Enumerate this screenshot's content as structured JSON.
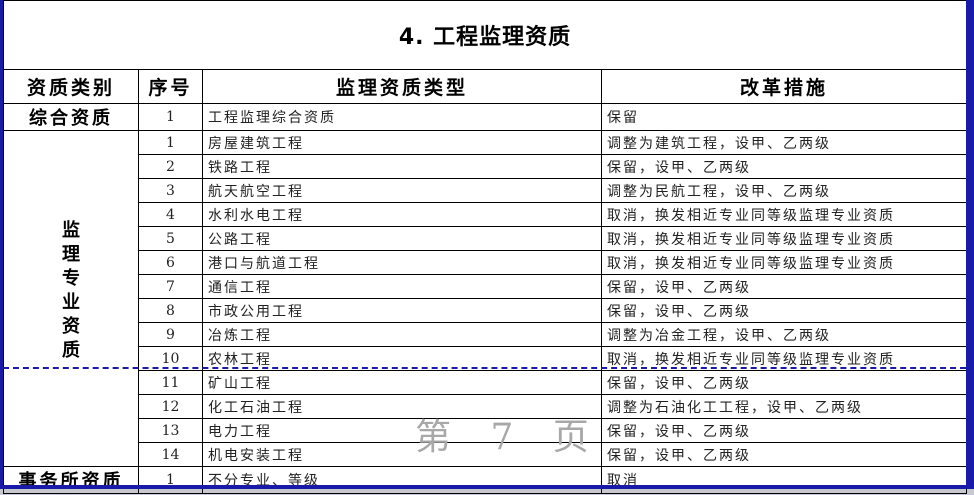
{
  "title": "4. 工程监理资质",
  "headers": [
    "资质类别",
    "序号",
    "监理资质类型",
    "改革措施"
  ],
  "groups": {
    "comprehensive": "综合资质",
    "specialty": [
      "监",
      "理",
      "专",
      "业",
      "资",
      "质"
    ],
    "firm": "事务所资质"
  },
  "rows": [
    {
      "no": "1",
      "type": "工程监理综合资质",
      "measure": "保留"
    },
    {
      "no": "1",
      "type": "房屋建筑工程",
      "measure": "调整为建筑工程，设甲、乙两级"
    },
    {
      "no": "2",
      "type": "铁路工程",
      "measure": "保留，设甲、乙两级"
    },
    {
      "no": "3",
      "type": "航天航空工程",
      "measure": "调整为民航工程，设甲、乙两级"
    },
    {
      "no": "4",
      "type": "水利水电工程",
      "measure": "取消，换发相近专业同等级监理专业资质"
    },
    {
      "no": "5",
      "type": "公路工程",
      "measure": "取消，换发相近专业同等级监理专业资质"
    },
    {
      "no": "6",
      "type": "港口与航道工程",
      "measure": "取消，换发相近专业同等级监理专业资质"
    },
    {
      "no": "7",
      "type": "通信工程",
      "measure": "保留，设甲、乙两级"
    },
    {
      "no": "8",
      "type": "市政公用工程",
      "measure": "保留，设甲、乙两级"
    },
    {
      "no": "9",
      "type": "冶炼工程",
      "measure": "调整为冶金工程，设甲、乙两级"
    },
    {
      "no": "10",
      "type": "农林工程",
      "measure": "取消，换发相近专业同等级监理专业资质"
    },
    {
      "no": "11",
      "type": "矿山工程",
      "measure": "保留，设甲、乙两级"
    },
    {
      "no": "12",
      "type": "化工石油工程",
      "measure": "调整为石油化工工程，设甲、乙两级"
    },
    {
      "no": "13",
      "type": "电力工程",
      "measure": "保留，设甲、乙两级"
    },
    {
      "no": "14",
      "type": "机电安装工程",
      "measure": "保留，设甲、乙两级"
    },
    {
      "no": "1",
      "type": "不分专业、等级",
      "measure": "取消"
    }
  ],
  "watermark": "第 7 页",
  "colors": {
    "page_border": "#1a1aa8",
    "watermark": "#a8a8a8"
  }
}
